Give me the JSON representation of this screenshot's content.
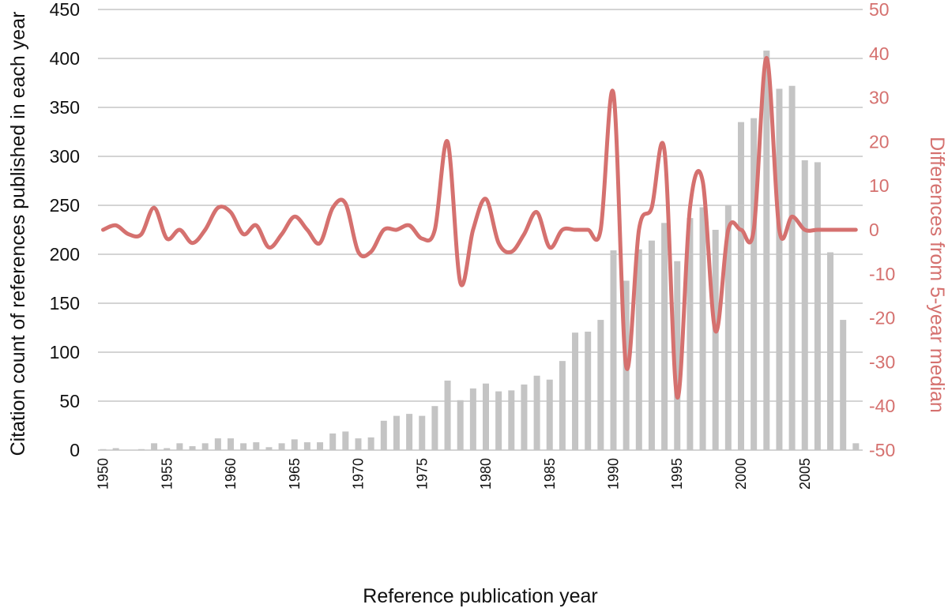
{
  "chart_data": {
    "type": "bar",
    "xlabel": "Reference publication year",
    "ylabel": "Citation count of references published in each year",
    "y2label": "Differences from 5-year median",
    "ylim": [
      0,
      450
    ],
    "y2lim": [
      -50,
      50
    ],
    "yticks": [
      0,
      50,
      100,
      150,
      200,
      250,
      300,
      350,
      400,
      450
    ],
    "y2ticks": [
      -50,
      -40,
      -30,
      -20,
      -10,
      0,
      10,
      20,
      30,
      40,
      50
    ],
    "xticks": [
      1950,
      1955,
      1960,
      1965,
      1970,
      1975,
      1980,
      1985,
      1990,
      1995,
      2000,
      2005
    ],
    "grid": true,
    "colors": {
      "bars": "#c4c4c4",
      "line": "#d5716f",
      "grid": "#aaaaaa"
    },
    "x": [
      1950,
      1951,
      1952,
      1953,
      1954,
      1955,
      1956,
      1957,
      1958,
      1959,
      1960,
      1961,
      1962,
      1963,
      1964,
      1965,
      1966,
      1967,
      1968,
      1969,
      1970,
      1971,
      1972,
      1973,
      1974,
      1975,
      1976,
      1977,
      1978,
      1979,
      1980,
      1981,
      1982,
      1983,
      1984,
      1985,
      1986,
      1987,
      1988,
      1989,
      1990,
      1991,
      1992,
      1993,
      1994,
      1995,
      1996,
      1997,
      1998,
      1999,
      2000,
      2001,
      2002,
      2003,
      2004,
      2005,
      2006,
      2007,
      2008,
      2009
    ],
    "series": [
      {
        "type": "bar",
        "axis": "left",
        "values": [
          1,
          2,
          0,
          1,
          7,
          2,
          7,
          4,
          7,
          12,
          12,
          7,
          8,
          3,
          7,
          11,
          8,
          8,
          17,
          19,
          12,
          13,
          30,
          35,
          37,
          35,
          45,
          71,
          51,
          63,
          68,
          60,
          61,
          67,
          76,
          72,
          91,
          120,
          121,
          133,
          204,
          173,
          205,
          214,
          232,
          193,
          237,
          248,
          225,
          250,
          335,
          339,
          408,
          369,
          372,
          296,
          294,
          202,
          133,
          7
        ]
      },
      {
        "type": "line",
        "axis": "right",
        "values": [
          0,
          1,
          -1,
          -1,
          5,
          -2,
          0,
          -3,
          0,
          5,
          4,
          -1,
          1,
          -4,
          -1,
          3,
          0,
          -3,
          5,
          6,
          -5,
          -5,
          0,
          0,
          1,
          -2,
          0,
          20,
          -12,
          0,
          7,
          -3,
          -5,
          -1,
          4,
          -4,
          0,
          0,
          0,
          0,
          31,
          -31,
          0,
          5,
          18,
          -38,
          5,
          11,
          -23,
          0,
          0,
          0,
          39,
          0,
          3,
          0,
          0,
          0,
          0,
          0
        ]
      }
    ]
  }
}
